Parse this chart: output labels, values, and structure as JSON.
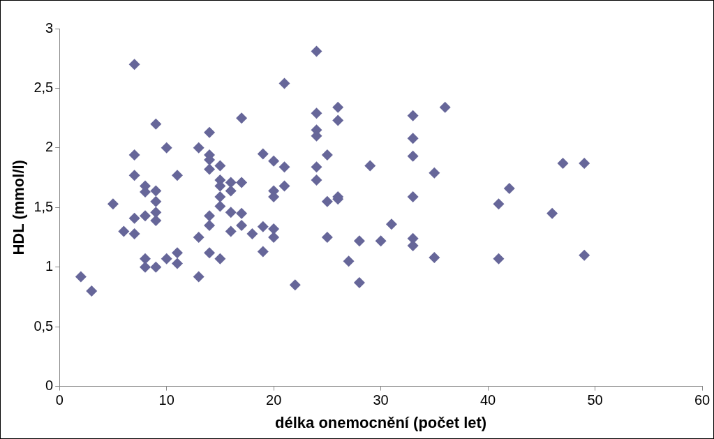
{
  "chart_data": {
    "type": "scatter",
    "xlabel": "délka onemocnění (počet let)",
    "ylabel": "HDL (mmol/l)",
    "x": [
      2,
      3,
      5,
      6,
      7,
      7,
      7,
      7,
      7,
      8,
      8,
      8,
      8,
      8,
      9,
      9,
      9,
      9,
      9,
      9,
      10,
      10,
      11,
      11,
      11,
      13,
      13,
      13,
      14,
      14,
      14,
      14,
      14,
      14,
      14,
      15,
      15,
      15,
      15,
      15,
      15,
      16,
      16,
      16,
      16,
      17,
      17,
      17,
      17,
      18,
      19,
      19,
      19,
      20,
      20,
      20,
      20,
      20,
      21,
      21,
      21,
      22,
      24,
      24,
      24,
      24,
      24,
      24,
      25,
      25,
      25,
      26,
      26,
      26,
      26,
      27,
      28,
      28,
      29,
      30,
      31,
      33,
      33,
      33,
      33,
      33,
      33,
      35,
      35,
      36,
      41,
      41,
      42,
      46,
      47,
      49,
      49
    ],
    "series": [
      {
        "color": "#666699",
        "values": [
          0.92,
          0.8,
          1.53,
          1.3,
          2.7,
          1.94,
          1.77,
          1.41,
          1.28,
          1.68,
          1.63,
          1.43,
          1.07,
          1.0,
          2.2,
          1.64,
          1.55,
          1.46,
          1.39,
          1.0,
          2.0,
          1.07,
          1.77,
          1.12,
          1.03,
          2.0,
          1.25,
          0.92,
          2.13,
          1.94,
          1.9,
          1.82,
          1.43,
          1.35,
          1.12,
          1.85,
          1.73,
          1.68,
          1.59,
          1.51,
          1.07,
          1.71,
          1.64,
          1.46,
          1.3,
          2.25,
          1.71,
          1.45,
          1.35,
          1.28,
          1.95,
          1.34,
          1.13,
          1.89,
          1.64,
          1.59,
          1.32,
          1.25,
          2.54,
          1.84,
          1.68,
          0.85,
          2.81,
          2.29,
          2.15,
          2.1,
          1.84,
          1.73,
          1.94,
          1.55,
          1.25,
          2.34,
          2.23,
          1.59,
          1.57,
          1.05,
          1.22,
          0.87,
          1.85,
          1.22,
          1.36,
          2.27,
          2.08,
          1.93,
          1.59,
          1.24,
          1.18,
          1.79,
          1.08,
          2.34,
          1.53,
          1.07,
          1.66,
          1.45,
          1.87,
          1.87,
          1.1
        ]
      }
    ],
    "xlim": [
      0,
      60
    ],
    "xticks": [
      0,
      10,
      20,
      30,
      40,
      50,
      60
    ],
    "ylim": [
      0,
      3
    ],
    "yticks": [
      {
        "value": 0,
        "label": "0"
      },
      {
        "value": 0.5,
        "label": "0,5"
      },
      {
        "value": 1,
        "label": "1"
      },
      {
        "value": 1.5,
        "label": "1,5"
      },
      {
        "value": 2,
        "label": "2"
      },
      {
        "value": 2.5,
        "label": "2,5"
      },
      {
        "value": 3,
        "label": "3"
      }
    ],
    "marker": "diamond",
    "grid": false,
    "legend": false
  }
}
